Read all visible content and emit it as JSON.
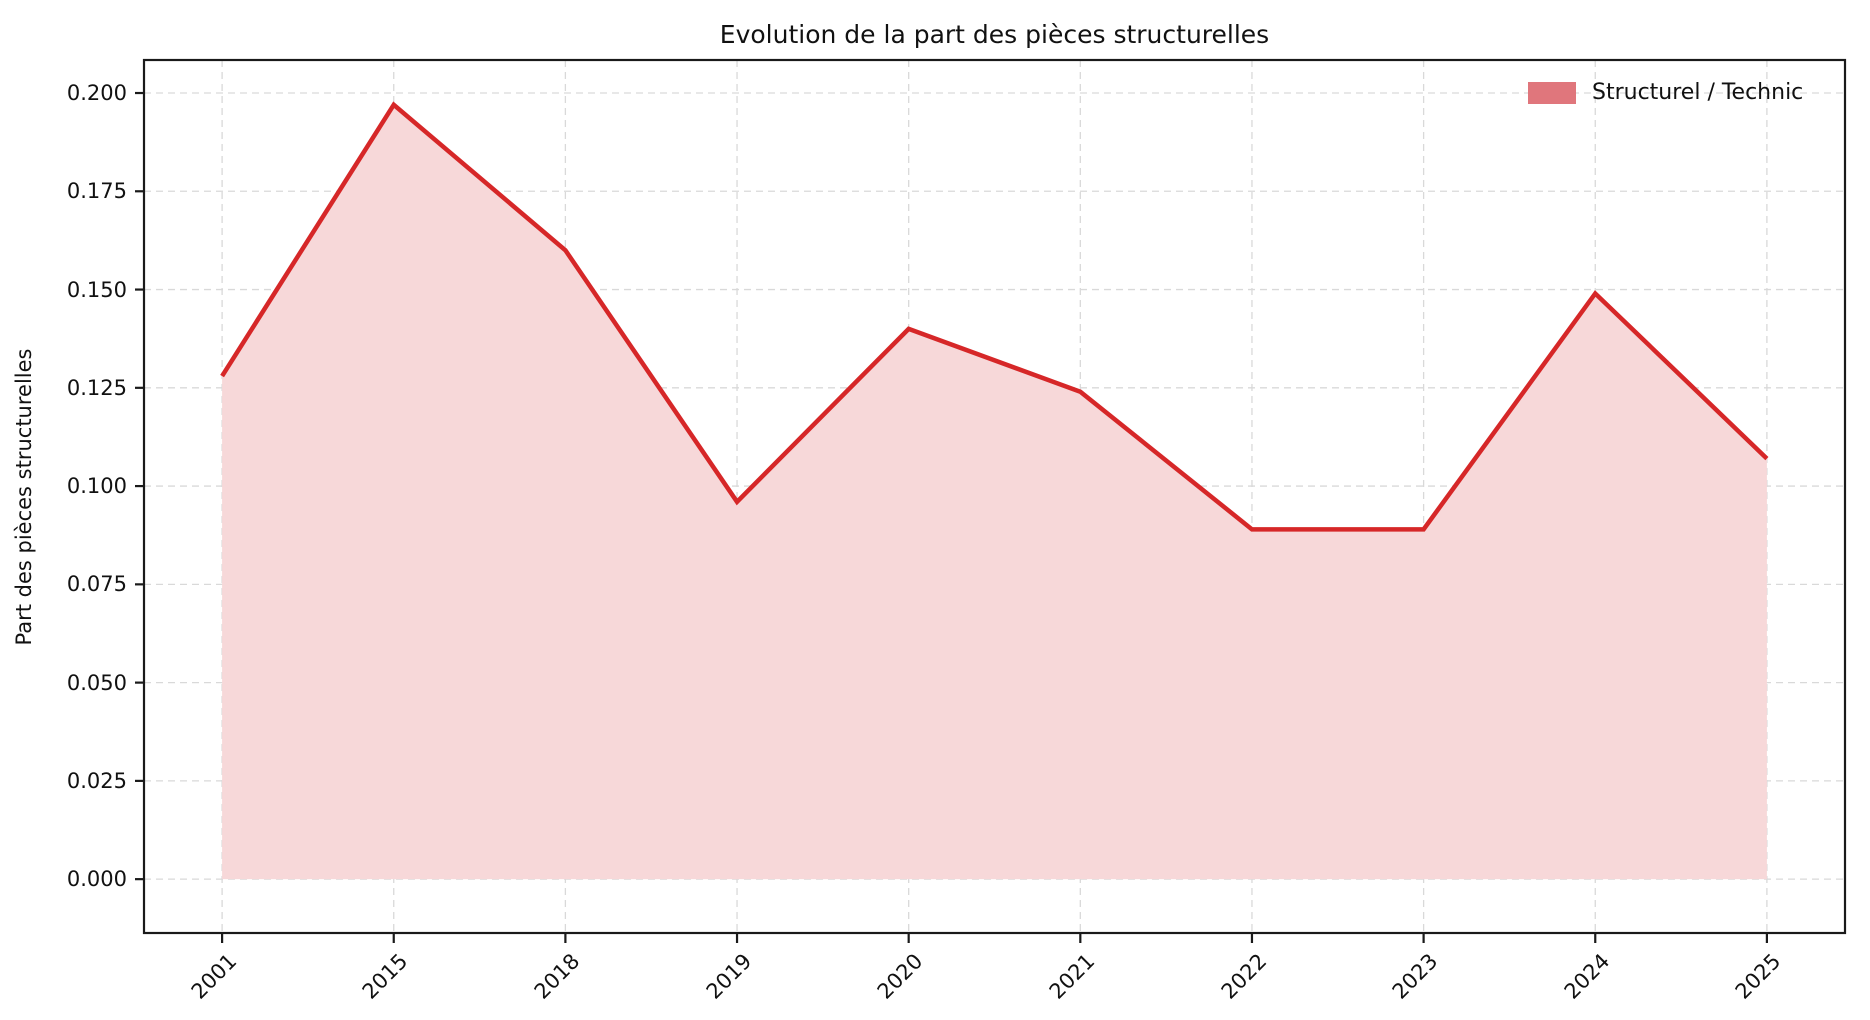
{
  "chart_data": {
    "type": "area",
    "title": "Evolution de la part des pièces structurelles",
    "ylabel": "Part des pièces structurelles",
    "xlabel": "",
    "categories": [
      "2001",
      "2015",
      "2018",
      "2019",
      "2020",
      "2021",
      "2022",
      "2023",
      "2024",
      "2025"
    ],
    "series": [
      {
        "name": "Structurel / Technic",
        "values": [
          0.128,
          0.197,
          0.16,
          0.096,
          0.14,
          0.124,
          0.089,
          0.089,
          0.149,
          0.107
        ]
      }
    ],
    "yticks": {
      "values": [
        0.0,
        0.025,
        0.05,
        0.075,
        0.1,
        0.125,
        0.15,
        0.175,
        0.2
      ],
      "labels": [
        "0.000",
        "0.025",
        "0.050",
        "0.075",
        "0.100",
        "0.125",
        "0.150",
        "0.175",
        "0.200"
      ]
    },
    "ylim": [
      -0.0137,
      0.2084
    ],
    "x_tick_rotation": 45,
    "grid": true,
    "legend_position": "upper right",
    "colors": {
      "line": "#d62728",
      "fill": "#f7d8d9",
      "legend_patch": "#e0767c",
      "grid": "#d9d9d9",
      "spine": "#1a1a1a",
      "background": "#ffffff"
    }
  }
}
